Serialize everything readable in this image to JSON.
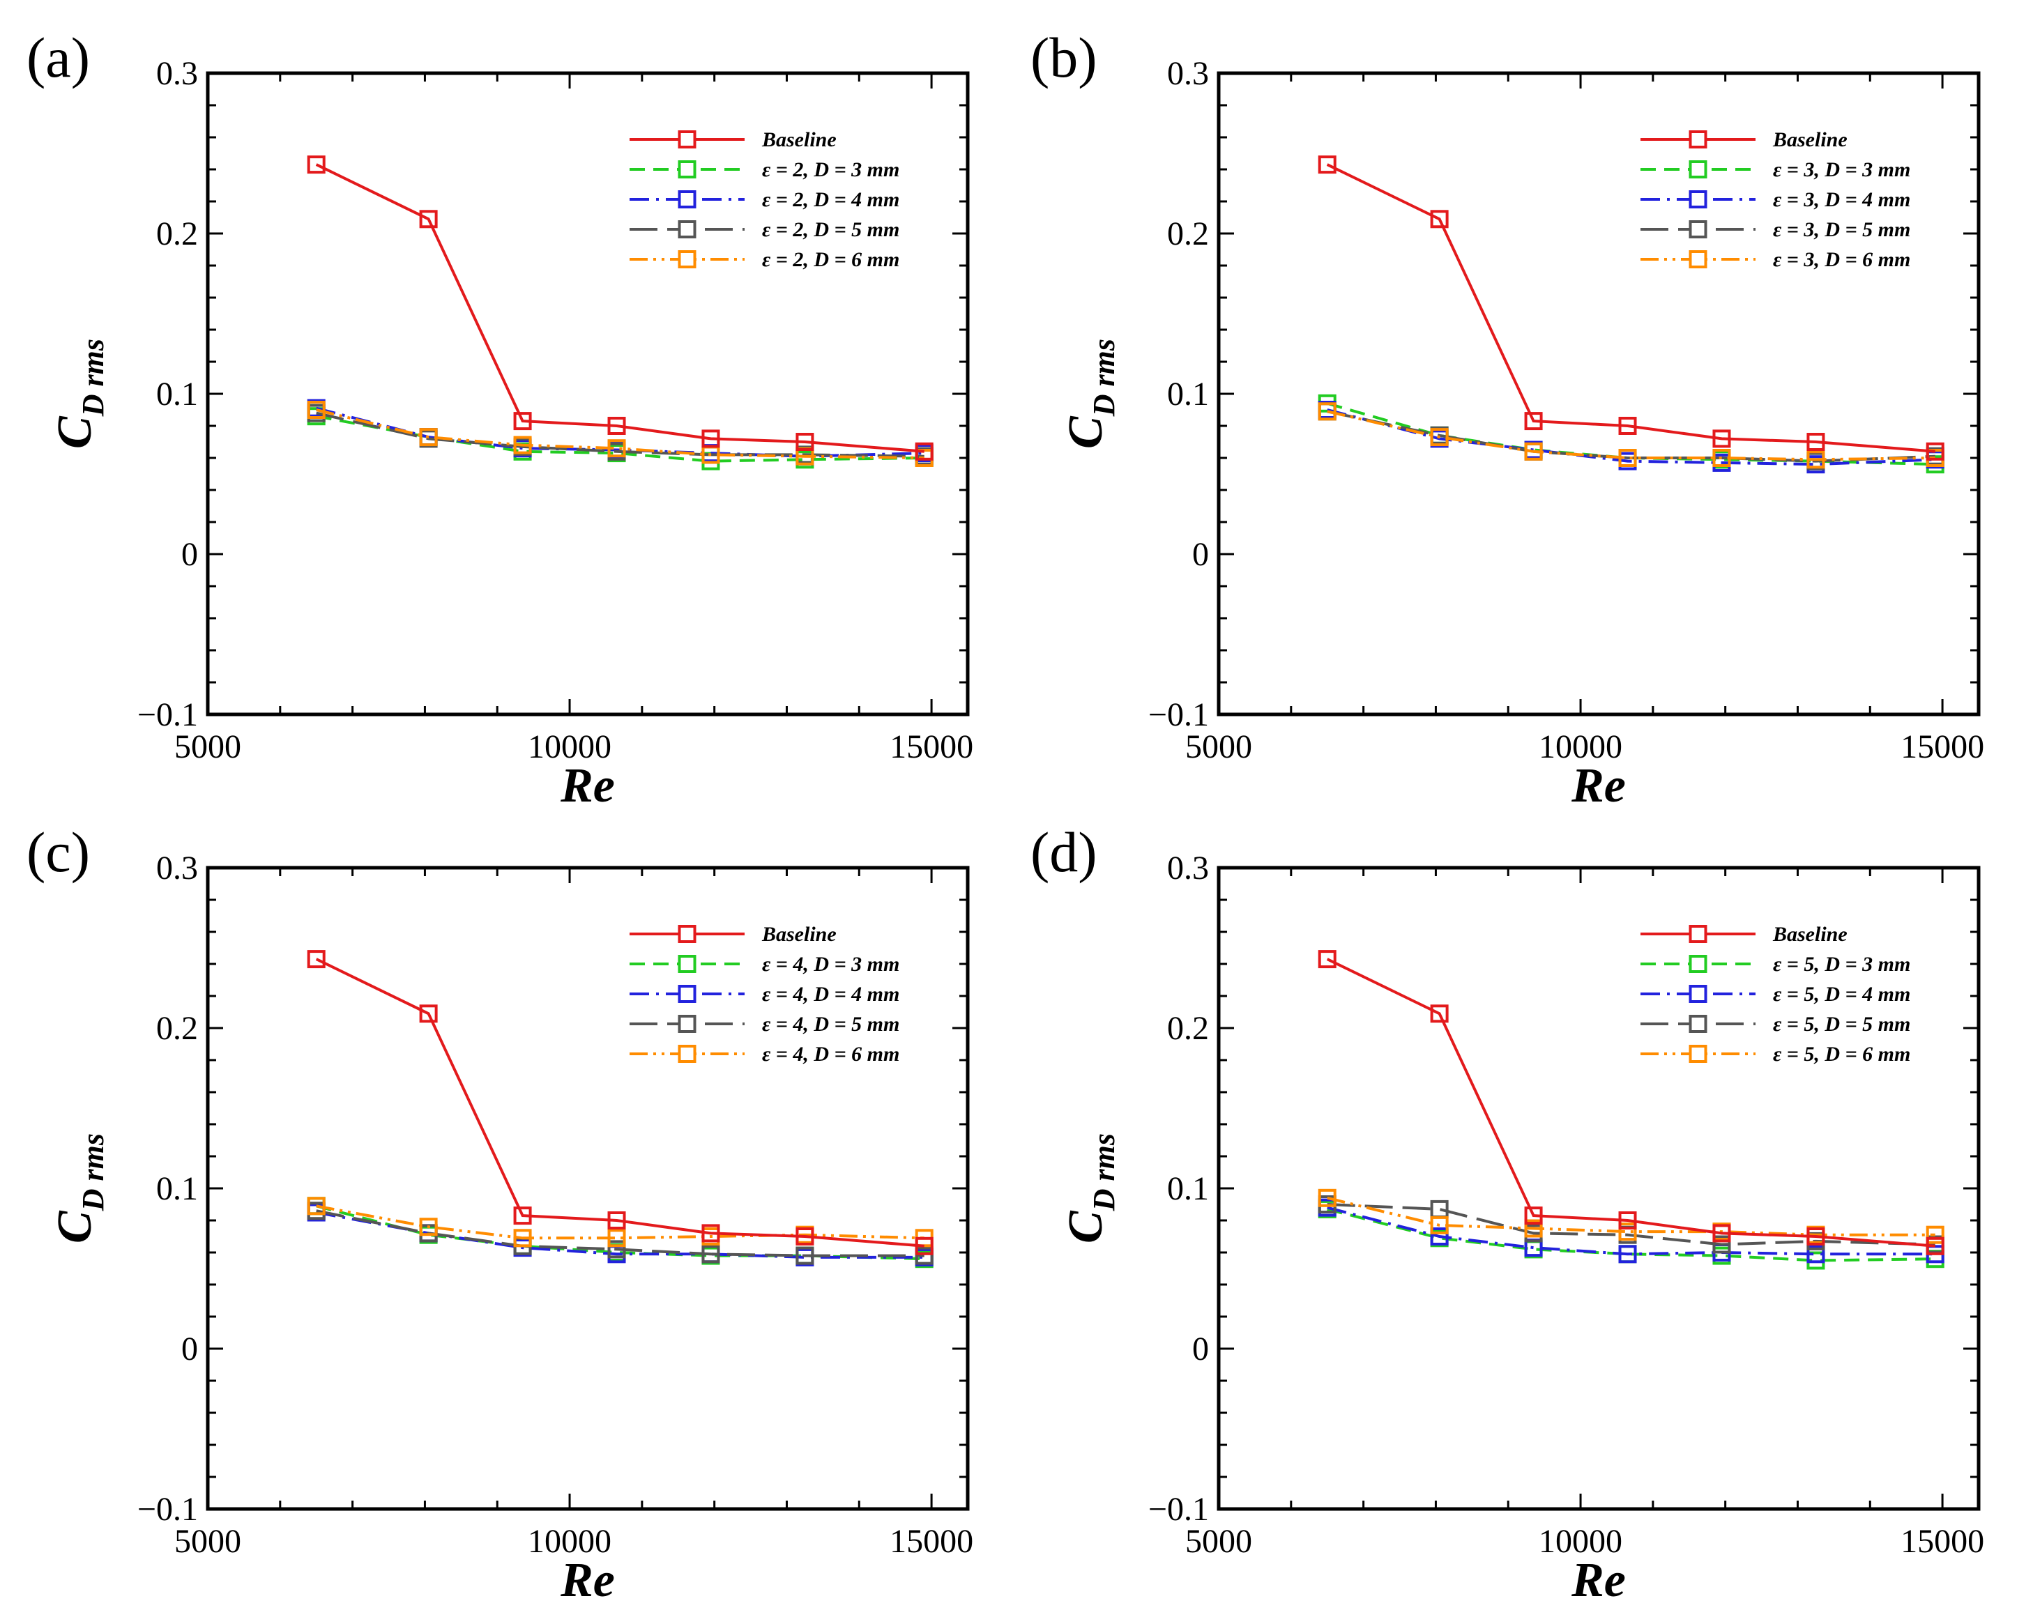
{
  "figure": {
    "x_axis_label": "Re",
    "y_axis_label_main": "C",
    "y_axis_label_sub": "D rms"
  },
  "chart_data": [
    {
      "type": "line",
      "panel_label": "(a)",
      "xlabel": "Re",
      "ylabel": "C_D rms",
      "xlim": [
        5000,
        15500
      ],
      "ylim": [
        -0.1,
        0.3
      ],
      "xticks": [
        "5000",
        "10000",
        "15000"
      ],
      "yticks": [
        "−0.1",
        "0",
        "0.1",
        "0.2",
        "0.3"
      ],
      "legend_position": "top-right",
      "series": [
        {
          "name": "Baseline",
          "color": "#e31a1c",
          "dash": "solid",
          "x": [
            6500,
            8050,
            9350,
            10650,
            11950,
            13250,
            14900
          ],
          "y": [
            0.243,
            0.209,
            0.083,
            0.08,
            0.072,
            0.07,
            0.064
          ]
        },
        {
          "name": "ε = 2, D = 3 mm",
          "color": "#22cc22",
          "dash": "dash",
          "x": [
            6500,
            8050,
            9350,
            10650,
            11950,
            13250,
            14900
          ],
          "y": [
            0.086,
            0.073,
            0.064,
            0.063,
            0.058,
            0.059,
            0.06
          ]
        },
        {
          "name": "ε = 2, D = 4 mm",
          "color": "#2222dd",
          "dash": "dashdot",
          "x": [
            6500,
            8050,
            9350,
            10650,
            11950,
            13250,
            14900
          ],
          "y": [
            0.091,
            0.073,
            0.066,
            0.065,
            0.063,
            0.061,
            0.063
          ]
        },
        {
          "name": "ε = 2, D = 5 mm",
          "color": "#555555",
          "dash": "longdash",
          "x": [
            6500,
            8050,
            9350,
            10650,
            11950,
            13250,
            14900
          ],
          "y": [
            0.088,
            0.072,
            0.067,
            0.064,
            0.062,
            0.062,
            0.061
          ]
        },
        {
          "name": "ε = 2, D = 6 mm",
          "color": "#ff8c00",
          "dash": "dashdotdot",
          "x": [
            6500,
            8050,
            9350,
            10650,
            11950,
            13250,
            14900
          ],
          "y": [
            0.09,
            0.073,
            0.068,
            0.066,
            0.062,
            0.061,
            0.06
          ]
        }
      ]
    },
    {
      "type": "line",
      "panel_label": "(b)",
      "xlabel": "Re",
      "ylabel": "C_D rms",
      "xlim": [
        5000,
        15500
      ],
      "ylim": [
        -0.1,
        0.3
      ],
      "xticks": [
        "5000",
        "10000",
        "15000"
      ],
      "yticks": [
        "−0.1",
        "0",
        "0.1",
        "0.2",
        "0.3"
      ],
      "legend_position": "top-right",
      "series": [
        {
          "name": "Baseline",
          "color": "#e31a1c",
          "dash": "solid",
          "x": [
            6500,
            8050,
            9350,
            10650,
            11950,
            13250,
            14900
          ],
          "y": [
            0.243,
            0.209,
            0.083,
            0.08,
            0.072,
            0.07,
            0.064
          ]
        },
        {
          "name": "ε = 3, D = 3 mm",
          "color": "#22cc22",
          "dash": "dash",
          "x": [
            6500,
            8050,
            9350,
            10650,
            11950,
            13250,
            14900
          ],
          "y": [
            0.094,
            0.074,
            0.065,
            0.06,
            0.059,
            0.058,
            0.056
          ]
        },
        {
          "name": "ε = 3, D = 4 mm",
          "color": "#2222dd",
          "dash": "dashdot",
          "x": [
            6500,
            8050,
            9350,
            10650,
            11950,
            13250,
            14900
          ],
          "y": [
            0.09,
            0.072,
            0.065,
            0.058,
            0.057,
            0.056,
            0.059
          ]
        },
        {
          "name": "ε = 3, D = 5 mm",
          "color": "#555555",
          "dash": "longdash",
          "x": [
            6500,
            8050,
            9350,
            10650,
            11950,
            13250,
            14900
          ],
          "y": [
            0.089,
            0.074,
            0.064,
            0.06,
            0.06,
            0.058,
            0.061
          ]
        },
        {
          "name": "ε = 3, D = 6 mm",
          "color": "#ff8c00",
          "dash": "dashdotdot",
          "x": [
            6500,
            8050,
            9350,
            10650,
            11950,
            13250,
            14900
          ],
          "y": [
            0.089,
            0.073,
            0.064,
            0.06,
            0.06,
            0.059,
            0.06
          ]
        }
      ]
    },
    {
      "type": "line",
      "panel_label": "(c)",
      "xlabel": "Re",
      "ylabel": "C_D rms",
      "xlim": [
        5000,
        15500
      ],
      "ylim": [
        -0.1,
        0.3
      ],
      "xticks": [
        "5000",
        "10000",
        "15000"
      ],
      "yticks": [
        "−0.1",
        "0",
        "0.1",
        "0.2",
        "0.3"
      ],
      "legend_position": "top-right",
      "series": [
        {
          "name": "Baseline",
          "color": "#e31a1c",
          "dash": "solid",
          "x": [
            6500,
            8050,
            9350,
            10650,
            11950,
            13250,
            14900
          ],
          "y": [
            0.243,
            0.209,
            0.083,
            0.08,
            0.072,
            0.07,
            0.064
          ]
        },
        {
          "name": "ε = 4, D = 3 mm",
          "color": "#22cc22",
          "dash": "dash",
          "x": [
            6500,
            8050,
            9350,
            10650,
            11950,
            13250,
            14900
          ],
          "y": [
            0.089,
            0.071,
            0.064,
            0.06,
            0.058,
            0.058,
            0.056
          ]
        },
        {
          "name": "ε = 4, D = 4 mm",
          "color": "#2222dd",
          "dash": "dashdot",
          "x": [
            6500,
            8050,
            9350,
            10650,
            11950,
            13250,
            14900
          ],
          "y": [
            0.085,
            0.072,
            0.063,
            0.059,
            0.059,
            0.057,
            0.057
          ]
        },
        {
          "name": "ε = 4, D = 5 mm",
          "color": "#555555",
          "dash": "longdash",
          "x": [
            6500,
            8050,
            9350,
            10650,
            11950,
            13250,
            14900
          ],
          "y": [
            0.086,
            0.072,
            0.064,
            0.062,
            0.059,
            0.058,
            0.058
          ]
        },
        {
          "name": "ε = 4, D = 6 mm",
          "color": "#ff8c00",
          "dash": "dashdotdot",
          "x": [
            6500,
            8050,
            9350,
            10650,
            11950,
            13250,
            14900
          ],
          "y": [
            0.089,
            0.076,
            0.069,
            0.069,
            0.07,
            0.071,
            0.069
          ]
        }
      ]
    },
    {
      "type": "line",
      "panel_label": "(d)",
      "xlabel": "Re",
      "ylabel": "C_D rms",
      "xlim": [
        5000,
        15500
      ],
      "ylim": [
        -0.1,
        0.3
      ],
      "xticks": [
        "5000",
        "10000",
        "15000"
      ],
      "yticks": [
        "−0.1",
        "0",
        "0.1",
        "0.2",
        "0.3"
      ],
      "legend_position": "top-right",
      "series": [
        {
          "name": "Baseline",
          "color": "#e31a1c",
          "dash": "solid",
          "x": [
            6500,
            8050,
            9350,
            10650,
            11950,
            13250,
            14900
          ],
          "y": [
            0.243,
            0.209,
            0.083,
            0.08,
            0.072,
            0.07,
            0.064
          ]
        },
        {
          "name": "ε = 5, D = 3 mm",
          "color": "#22cc22",
          "dash": "dash",
          "x": [
            6500,
            8050,
            9350,
            10650,
            11950,
            13250,
            14900
          ],
          "y": [
            0.087,
            0.069,
            0.062,
            0.059,
            0.058,
            0.055,
            0.056
          ]
        },
        {
          "name": "ε = 5, D = 4 mm",
          "color": "#2222dd",
          "dash": "dashdot",
          "x": [
            6500,
            8050,
            9350,
            10650,
            11950,
            13250,
            14900
          ],
          "y": [
            0.088,
            0.07,
            0.063,
            0.059,
            0.06,
            0.059,
            0.059
          ]
        },
        {
          "name": "ε = 5, D = 5 mm",
          "color": "#555555",
          "dash": "longdash",
          "x": [
            6500,
            8050,
            9350,
            10650,
            11950,
            13250,
            14900
          ],
          "y": [
            0.09,
            0.087,
            0.072,
            0.071,
            0.065,
            0.067,
            0.065
          ]
        },
        {
          "name": "ε = 5, D = 6 mm",
          "color": "#ff8c00",
          "dash": "dashdotdot",
          "x": [
            6500,
            8050,
            9350,
            10650,
            11950,
            13250,
            14900
          ],
          "y": [
            0.094,
            0.077,
            0.075,
            0.073,
            0.073,
            0.071,
            0.071
          ]
        }
      ]
    }
  ]
}
